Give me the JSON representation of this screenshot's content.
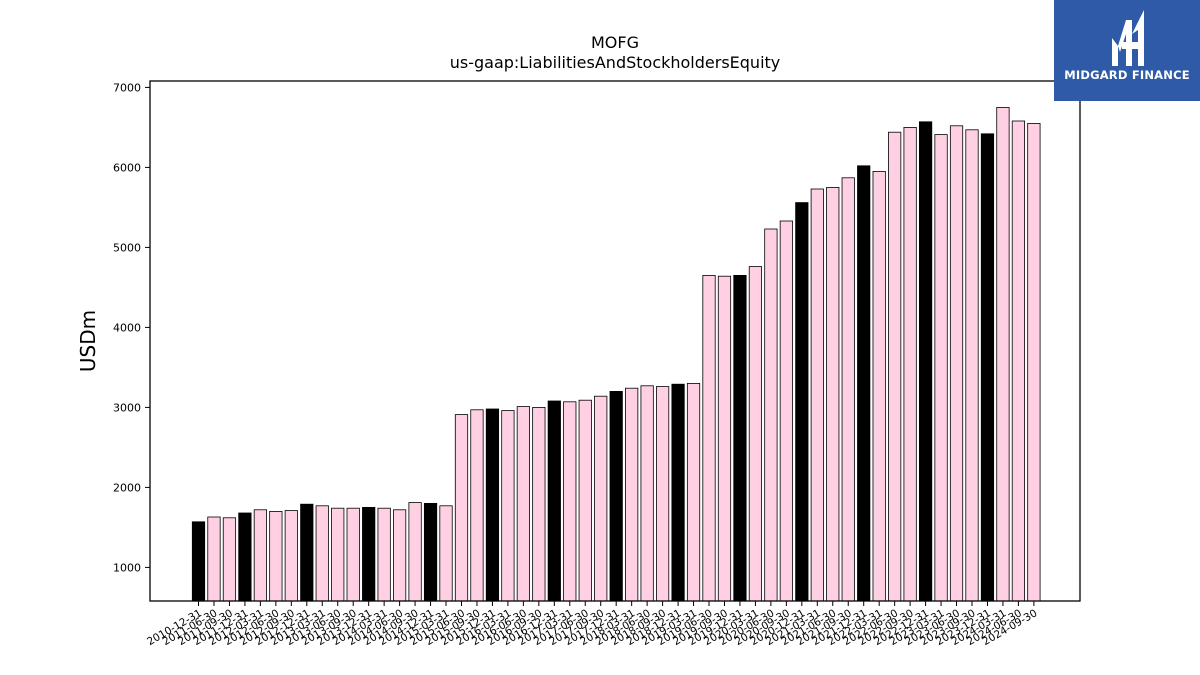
{
  "brand": {
    "name": "MIDGARD FINANCE",
    "bg_color": "#2e5aa8",
    "icon": "midgard-m-logo-icon"
  },
  "chart_data": {
    "type": "bar",
    "title": "MOFG",
    "subtitle": "us-gaap:LiabilitiesAndStockholdersEquity",
    "ylabel": "USDm",
    "xlabel": "",
    "ylim": [
      580,
      7080
    ],
    "yticks": [
      1000,
      2000,
      3000,
      4000,
      5000,
      6000,
      7000
    ],
    "grid": false,
    "colors": {
      "annual": "#000000",
      "quarterly": "#ffd0e4",
      "edge": "#000000"
    },
    "categories": [
      "2010-12-31",
      "2011-06-30",
      "2011-09-30",
      "2011-12-31",
      "2012-03-31",
      "2012-06-30",
      "2012-09-30",
      "2012-12-31",
      "2013-03-31",
      "2013-06-30",
      "2013-09-30",
      "2013-12-31",
      "2014-03-31",
      "2014-06-30",
      "2014-09-30",
      "2014-12-31",
      "2015-03-31",
      "2015-06-30",
      "2015-09-30",
      "2015-12-31",
      "2016-03-31",
      "2016-06-30",
      "2016-09-30",
      "2016-12-31",
      "2017-03-31",
      "2017-06-30",
      "2017-09-30",
      "2017-12-31",
      "2018-03-31",
      "2018-06-30",
      "2018-09-30",
      "2018-12-31",
      "2019-03-31",
      "2019-06-30",
      "2019-09-30",
      "2019-12-31",
      "2020-03-31",
      "2020-06-30",
      "2020-09-30",
      "2020-12-31",
      "2021-03-31",
      "2021-06-30",
      "2021-09-30",
      "2021-12-31",
      "2022-03-31",
      "2022-06-30",
      "2022-09-30",
      "2022-12-31",
      "2023-03-31",
      "2023-06-30",
      "2023-09-30",
      "2023-12-31",
      "2024-03-31",
      "2024-06-30",
      "2024-09-30"
    ],
    "values": [
      1570,
      1630,
      1620,
      1680,
      1720,
      1700,
      1710,
      1790,
      1770,
      1740,
      1740,
      1750,
      1740,
      1720,
      1810,
      1800,
      1770,
      2910,
      2970,
      2980,
      2960,
      3010,
      3000,
      3080,
      3070,
      3090,
      3140,
      3200,
      3240,
      3270,
      3260,
      3290,
      3300,
      4650,
      4640,
      4650,
      4760,
      5230,
      5330,
      5560,
      5730,
      5750,
      5870,
      6020,
      5950,
      6440,
      6500,
      6570,
      6410,
      6520,
      6470,
      6420,
      6750,
      6580,
      6550
    ],
    "annual_flags": [
      1,
      0,
      0,
      1,
      0,
      0,
      0,
      1,
      0,
      0,
      0,
      1,
      0,
      0,
      0,
      1,
      0,
      0,
      0,
      1,
      0,
      0,
      0,
      1,
      0,
      0,
      0,
      1,
      0,
      0,
      0,
      1,
      0,
      0,
      0,
      1,
      0,
      0,
      0,
      1,
      0,
      0,
      0,
      1,
      0,
      0,
      0,
      1,
      0,
      0,
      0,
      1,
      0,
      0,
      0
    ]
  }
}
